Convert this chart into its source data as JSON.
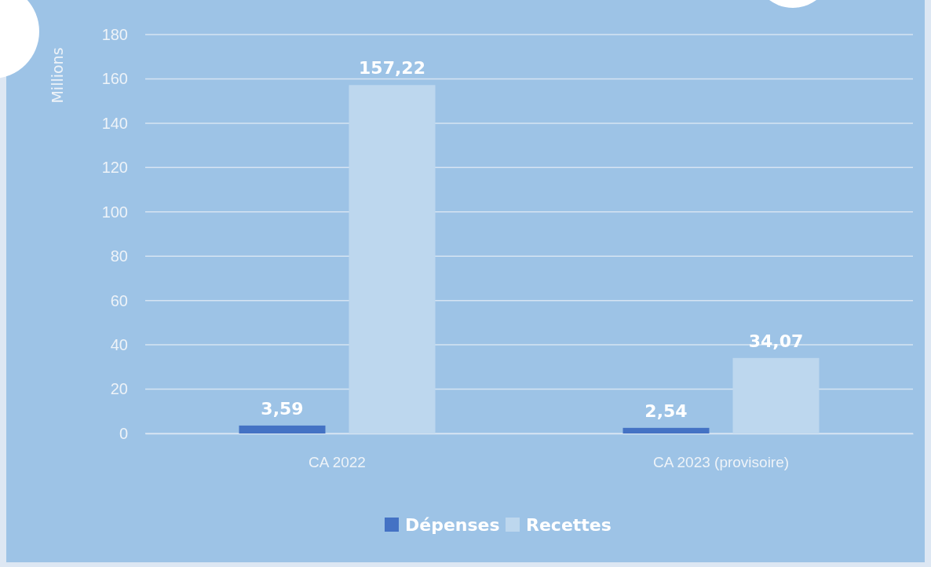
{
  "chart_data": {
    "type": "bar",
    "ylabel": "Millions",
    "categories": [
      "CA 2022",
      "CA 2023 (provisoire)"
    ],
    "series": [
      {
        "name": "Dépenses",
        "color": "#4472c4",
        "values": [
          3.59,
          2.54
        ],
        "value_labels": [
          "3,59",
          "2,54"
        ]
      },
      {
        "name": "Recettes",
        "color": "#bdd7ee",
        "values": [
          157.22,
          34.07
        ],
        "value_labels": [
          "157,22",
          "34,07"
        ]
      }
    ],
    "ylim": [
      0,
      180
    ],
    "yticks": [
      0,
      20,
      40,
      60,
      80,
      100,
      120,
      140,
      160,
      180
    ],
    "grid": "y",
    "legend": "bottom"
  }
}
